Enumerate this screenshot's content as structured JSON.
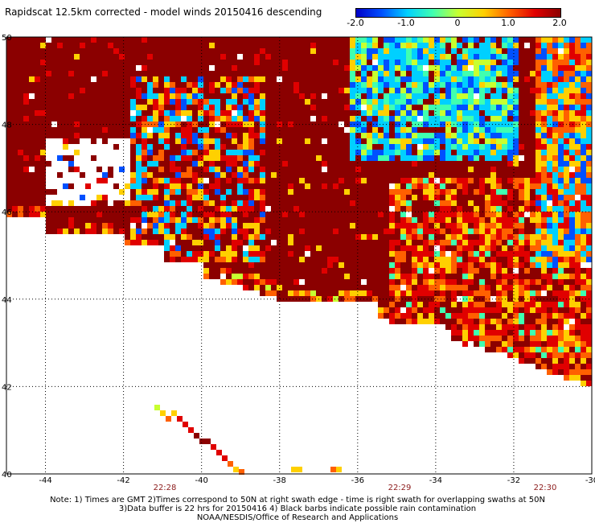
{
  "title": "Rapidscat 12.5km corrected - model winds 20150416 descending",
  "colorbar": {
    "ticks": [
      "-2.0",
      "-1.0",
      "0",
      "1.0",
      "2.0"
    ],
    "range": [
      -2.0,
      2.0
    ],
    "colors": [
      "#0000c8",
      "#0050ff",
      "#00d0ff",
      "#40ffb0",
      "#c8ff30",
      "#ffd000",
      "#ff6000",
      "#e00000",
      "#8b0000"
    ]
  },
  "map": {
    "lon_range": [
      -45,
      -30
    ],
    "lat_range": [
      40,
      50
    ],
    "lon_ticks": [
      "-44",
      "-42",
      "-40",
      "-38",
      "-36",
      "-34",
      "-32",
      "-30"
    ],
    "lat_ticks": [
      "50",
      "48",
      "46",
      "44",
      "42",
      "40"
    ],
    "time_labels": [
      "22:28",
      "22:29",
      "22:30"
    ],
    "time_color": "#8b1a1a",
    "background_color": "#ffffff",
    "grid_color": "#000000"
  },
  "notes": [
    "Note: 1) Times are GMT 2)Times correspond to 50N at right swath edge - time is right swath for overlapping swaths at 50N",
    "3)Data buffer is 22 hrs for 20150416 4) Black barbs indicate possible rain contamination",
    "NOAA/NESDIS/Office of Research and Applications"
  ]
}
